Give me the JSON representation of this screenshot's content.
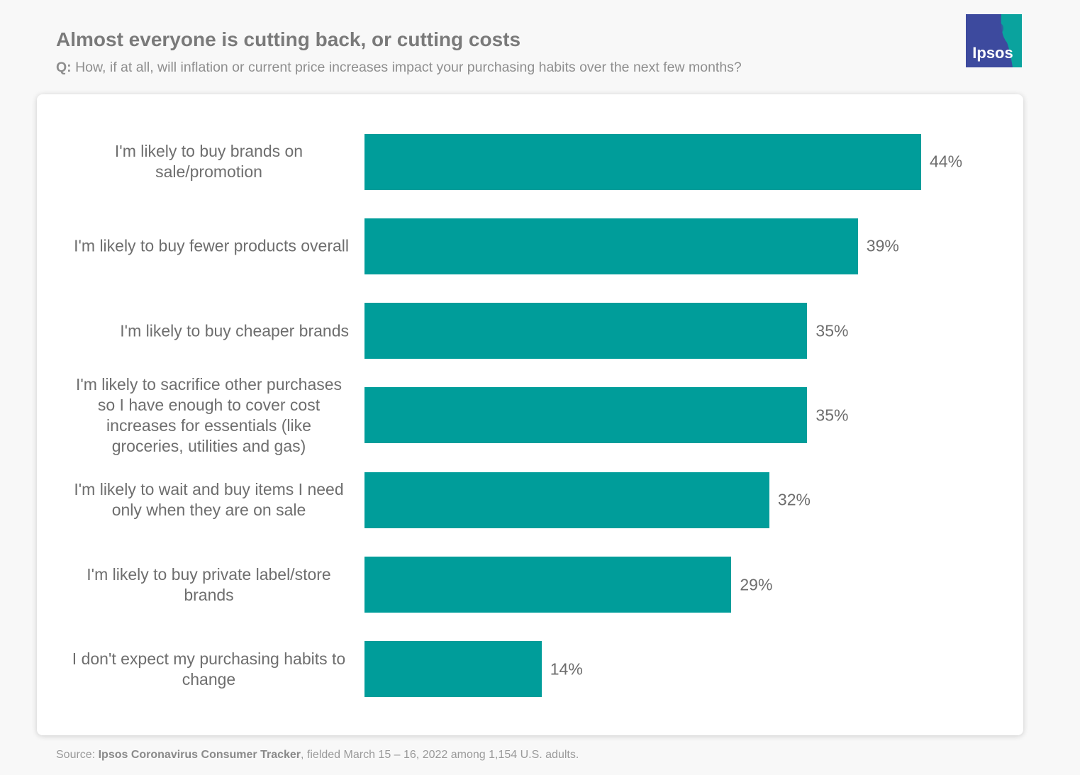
{
  "chart_data": {
    "type": "bar",
    "orientation": "horizontal",
    "title": "Almost everyone is cutting back, or cutting costs",
    "subtitle_prefix": "Q:",
    "subtitle": "How, if at all, will inflation or current price increases impact your purchasing habits over the next few months?",
    "logo": "Ipsos",
    "source_prefix": "Source:",
    "source_name": "Ipsos Coronavirus Consumer Tracker",
    "source_rest": ", fielded March 15 – 16, 2022 among 1,154 U.S. adults.",
    "color": "#009d9a",
    "categories": [
      "I'm likely to buy brands on sale/promotion",
      "I'm likely to buy fewer products overall",
      "I'm likely to buy cheaper brands",
      "I'm likely to sacrifice other purchases so I have enough to cover cost increases for essentials (like groceries, utilities and gas)",
      "I'm likely to wait and buy items I need only when they are on sale",
      "I'm likely to buy private label/store brands",
      "I don't expect my purchasing habits to change"
    ],
    "values": [
      44,
      39,
      35,
      35,
      32,
      29,
      14
    ],
    "value_labels": [
      "44%",
      "39%",
      "35%",
      "35%",
      "32%",
      "29%",
      "14%"
    ]
  }
}
